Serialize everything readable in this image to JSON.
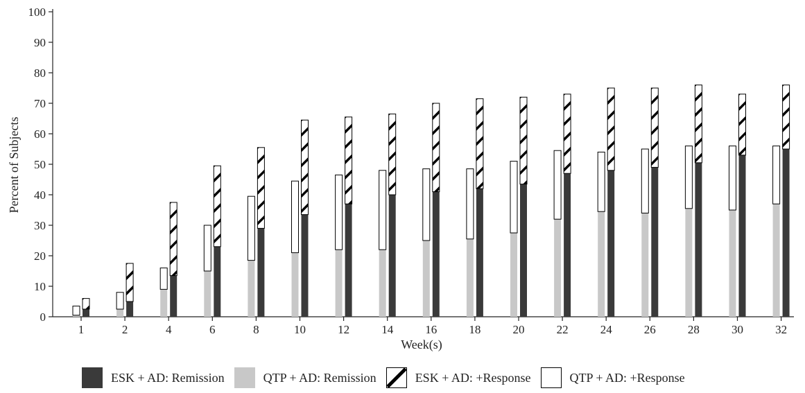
{
  "chart_data": {
    "type": "bar",
    "title": "",
    "xlabel": "Week(s)",
    "ylabel": "Percent of Subjects",
    "ylim": [
      0,
      100
    ],
    "yticks": [
      0,
      10,
      20,
      30,
      40,
      50,
      60,
      70,
      80,
      90,
      100
    ],
    "categories": [
      "1",
      "2",
      "4",
      "6",
      "8",
      "10",
      "12",
      "14",
      "16",
      "18",
      "20",
      "22",
      "24",
      "26",
      "28",
      "30",
      "32"
    ],
    "grid": false,
    "legend_position": "bottom",
    "bar_style": "stacked pairs (QTP + AD left, ESK + AD right)",
    "series": [
      {
        "name": "ESK + AD: Remission",
        "group": "ESK + AD",
        "style": "solid",
        "color": "#3a3a3a",
        "values": [
          2.5,
          5,
          13.5,
          23,
          29,
          33.5,
          37,
          40,
          41,
          42,
          43.5,
          47,
          48,
          49,
          50.5,
          53,
          55
        ]
      },
      {
        "name": "QTP + AD: Remission",
        "group": "QTP + AD",
        "style": "solid",
        "color": "#c8c8c8",
        "values": [
          0.5,
          2.5,
          9,
          15,
          18.5,
          21,
          22,
          22,
          25,
          25.5,
          27.5,
          32,
          34.5,
          34,
          35.5,
          35,
          37
        ]
      },
      {
        "name": "ESK + AD: +Response",
        "group": "ESK + AD",
        "style": "hatched",
        "color": "#000000",
        "values": [
          3.5,
          12.5,
          24,
          26.5,
          26.5,
          31,
          28.5,
          26.5,
          29,
          29.5,
          28.5,
          26,
          27,
          26,
          25.5,
          20,
          21
        ]
      },
      {
        "name": "QTP + AD: +Response",
        "group": "QTP + AD",
        "style": "outline",
        "color": "#ffffff",
        "values": [
          3,
          5.5,
          7,
          15,
          21,
          23.5,
          24.5,
          26,
          23.5,
          23,
          23.5,
          22.5,
          19.5,
          21,
          20.5,
          21,
          19
        ]
      }
    ]
  }
}
